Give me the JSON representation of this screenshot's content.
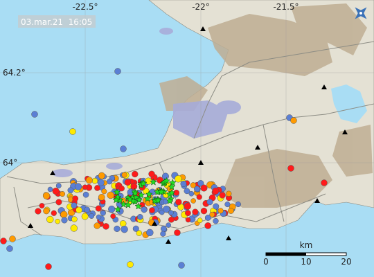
{
  "timestamp": "03.mar.21  16:05",
  "longitude_labels": [
    "-22.5°",
    "-22°",
    "-21.5°"
  ],
  "latitude_labels": [
    "64.2°",
    "64°"
  ],
  "scale": {
    "unit": "km",
    "labels": [
      "0",
      "10",
      "20"
    ]
  }
}
